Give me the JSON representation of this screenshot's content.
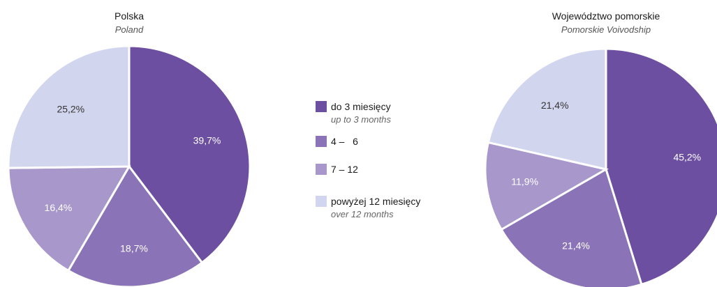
{
  "chart_data": [
    {
      "type": "pie",
      "title": "Polska",
      "subtitle": "Poland",
      "categories": [
        "do 3 miesięcy",
        "4 – 6",
        "7 – 12",
        "powyżej 12 miesięcy"
      ],
      "values": [
        39.7,
        18.7,
        16.4,
        25.2
      ],
      "labels": [
        "39,7%",
        "18,7%",
        "16,4%",
        "25,2%"
      ]
    },
    {
      "type": "pie",
      "title": "Województwo pomorskie",
      "subtitle": "Pomorskie Voivodship",
      "categories": [
        "do 3 miesięcy",
        "4 – 6",
        "7 – 12",
        "powyżej 12 miesięcy"
      ],
      "values": [
        45.2,
        21.4,
        11.9,
        21.4
      ],
      "labels": [
        "45,2%",
        "21,4%",
        "11,9%",
        "21,4%"
      ]
    }
  ],
  "legend": [
    {
      "label": "do 3 miesięcy",
      "sublabel": "up to 3 months",
      "color": "#6d4fa1"
    },
    {
      "label": "4 –   6",
      "sublabel": "",
      "color": "#8a73b6"
    },
    {
      "label": "7 – 12",
      "sublabel": "",
      "color": "#a797cb"
    },
    {
      "label": "powyżej 12 miesięcy",
      "sublabel": "over 12 months",
      "color": "#d2d5ee"
    }
  ],
  "colors": [
    "#6d4fa1",
    "#8a73b6",
    "#a797cb",
    "#d2d5ee"
  ],
  "label_colors": [
    "#ffffff",
    "#ffffff",
    "#ffffff",
    "#333333"
  ]
}
